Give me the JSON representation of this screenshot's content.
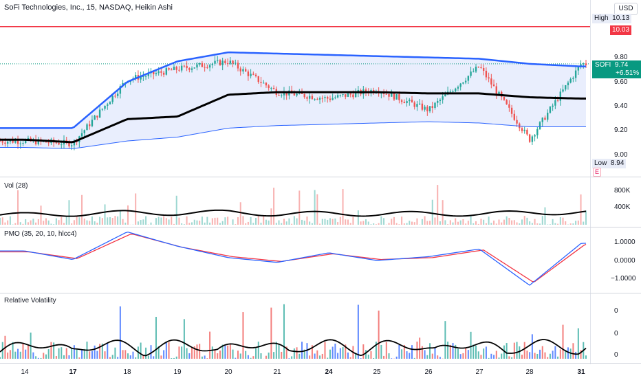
{
  "header": {
    "title": "SoFi Technologies, Inc., 15, NASDAQ, Heikin Ashi",
    "currency": "USD"
  },
  "colors": {
    "up": "#26a69a",
    "down": "#ef5350",
    "band_upper": "#2962ff",
    "band_lower": "#2962ff",
    "band_fill": "#e3eafc",
    "midline": "#000000",
    "alert_line": "#f23645",
    "pmo_line": "#2962ff",
    "pmo_signal": "#f23645"
  },
  "price_pane": {
    "high_label": "High",
    "high_value": "10.13",
    "low_label": "Low",
    "low_value": "8.94",
    "alert_value": "10.03",
    "symbol": "SOFI",
    "last_price": "9.74",
    "change": "+6.51%",
    "event_badge": "E",
    "axis_ticks": [
      "9.80",
      "9.60",
      "9.40",
      "9.20",
      "9.00"
    ]
  },
  "volume_pane": {
    "title": "Vol (28)",
    "axis_ticks": [
      "800K",
      "400K"
    ]
  },
  "pmo_pane": {
    "title": "PMO (35, 20, 10, hlcc4)",
    "axis_ticks": [
      "1.0000",
      "0.0000",
      "−1.0000"
    ]
  },
  "rv_pane": {
    "title": "Relative Volatility",
    "axis_ticks": [
      "0",
      "0",
      "0"
    ]
  },
  "x_axis": {
    "labels": [
      {
        "text": "14",
        "bold": false
      },
      {
        "text": "17",
        "bold": true
      },
      {
        "text": "18",
        "bold": false
      },
      {
        "text": "19",
        "bold": false
      },
      {
        "text": "20",
        "bold": false
      },
      {
        "text": "21",
        "bold": false
      },
      {
        "text": "24",
        "bold": true
      },
      {
        "text": "25",
        "bold": false
      },
      {
        "text": "26",
        "bold": false
      },
      {
        "text": "27",
        "bold": false
      },
      {
        "text": "28",
        "bold": false
      },
      {
        "text": "31",
        "bold": true
      }
    ]
  },
  "chart_data": {
    "type": "candlestick",
    "title": "SoFi Technologies, Inc., 15, NASDAQ, Heikin Ashi",
    "x": [
      "14",
      "17",
      "18",
      "19",
      "20",
      "21",
      "24",
      "25",
      "26",
      "27",
      "28",
      "31"
    ],
    "price_close_approx": [
      9.14,
      9.12,
      9.62,
      9.7,
      9.76,
      9.52,
      9.47,
      9.54,
      9.38,
      9.72,
      9.15,
      9.74
    ],
    "band_upper_approx": [
      9.24,
      9.24,
      9.6,
      9.76,
      9.83,
      9.82,
      9.81,
      9.8,
      9.79,
      9.78,
      9.74,
      9.72
    ],
    "midline_approx": [
      9.15,
      9.13,
      9.31,
      9.33,
      9.5,
      9.52,
      9.52,
      9.52,
      9.51,
      9.51,
      9.48,
      9.47
    ],
    "band_lower_approx": [
      9.09,
      9.08,
      9.14,
      9.17,
      9.24,
      9.26,
      9.27,
      9.28,
      9.29,
      9.28,
      9.25,
      9.25
    ],
    "alert_level": 10.03,
    "y_range": [
      8.9,
      10.13
    ],
    "volume_ma_approx": [
      280000,
      300000,
      330000,
      320000,
      340000,
      300000,
      310000,
      300000,
      310000,
      300000,
      330000,
      340000
    ],
    "pmo_approx": [
      0.55,
      0.1,
      1.55,
      0.8,
      0.2,
      -0.05,
      0.45,
      0.05,
      0.25,
      0.65,
      -1.25,
      0.95
    ],
    "pmo_signal_approx": [
      0.5,
      0.15,
      1.45,
      0.75,
      0.25,
      0.0,
      0.4,
      0.1,
      0.2,
      0.6,
      -1.1,
      0.9
    ],
    "pmo_range": [
      -1.5,
      1.6
    ]
  }
}
